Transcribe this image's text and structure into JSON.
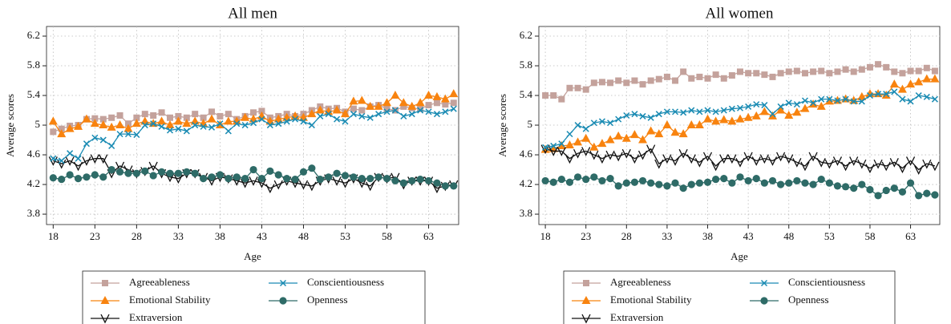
{
  "chart_data": [
    {
      "type": "line",
      "title": "All men",
      "xlabel": "Age",
      "ylabel": "Average scores",
      "grid": true,
      "xlim": [
        17.2,
        66.6
      ],
      "ylim": [
        3.66,
        6.33
      ],
      "xticks": [
        18,
        23,
        28,
        33,
        38,
        43,
        48,
        53,
        58,
        63
      ],
      "yticks": [
        3.8,
        4.2,
        4.6,
        5,
        5.4,
        5.8,
        6.2
      ],
      "x": [
        18,
        19,
        20,
        21,
        22,
        23,
        24,
        25,
        26,
        27,
        28,
        29,
        30,
        31,
        32,
        33,
        34,
        35,
        36,
        37,
        38,
        39,
        40,
        41,
        42,
        43,
        44,
        45,
        46,
        47,
        48,
        49,
        50,
        51,
        52,
        53,
        54,
        55,
        56,
        57,
        58,
        59,
        60,
        61,
        62,
        63,
        64,
        65,
        66
      ],
      "series": [
        {
          "name": "Agreeableness",
          "color": "#c4a29c",
          "marker": "square",
          "values": [
            4.91,
            4.95,
            4.99,
            5.0,
            5.08,
            5.09,
            5.08,
            5.1,
            5.13,
            5.02,
            5.1,
            5.15,
            5.13,
            5.17,
            5.1,
            5.12,
            5.1,
            5.15,
            5.1,
            5.18,
            5.12,
            5.15,
            5.08,
            5.12,
            5.17,
            5.19,
            5.1,
            5.12,
            5.15,
            5.12,
            5.15,
            5.2,
            5.25,
            5.22,
            5.23,
            5.18,
            5.22,
            5.2,
            5.25,
            5.27,
            5.22,
            5.2,
            5.25,
            5.23,
            5.22,
            5.27,
            5.3,
            5.28,
            5.3
          ]
        },
        {
          "name": "Emotional Stability",
          "color": "#f8830f",
          "marker": "triangle",
          "values": [
            5.05,
            4.88,
            4.95,
            4.98,
            5.08,
            5.02,
            5.0,
            4.97,
            5.0,
            4.95,
            5.02,
            5.05,
            5.02,
            5.05,
            5.0,
            5.05,
            5.02,
            5.05,
            5.02,
            5.08,
            5.0,
            5.05,
            5.05,
            5.1,
            5.08,
            5.12,
            5.05,
            5.08,
            5.1,
            5.12,
            5.1,
            5.15,
            5.2,
            5.18,
            5.2,
            5.15,
            5.32,
            5.33,
            5.25,
            5.25,
            5.3,
            5.4,
            5.3,
            5.25,
            5.3,
            5.4,
            5.38,
            5.35,
            5.42
          ]
        },
        {
          "name": "Extraversion",
          "color": "#111111",
          "marker": "vee",
          "values": [
            4.52,
            4.48,
            4.52,
            4.45,
            4.52,
            4.55,
            4.55,
            4.35,
            4.45,
            4.4,
            4.35,
            4.38,
            4.45,
            4.35,
            4.3,
            4.28,
            4.35,
            4.35,
            4.3,
            4.25,
            4.3,
            4.28,
            4.25,
            4.22,
            4.25,
            4.22,
            4.15,
            4.2,
            4.25,
            4.22,
            4.2,
            4.18,
            4.25,
            4.28,
            4.25,
            4.22,
            4.28,
            4.22,
            4.18,
            4.3,
            4.28,
            4.3,
            4.2,
            4.25,
            4.25,
            4.25,
            4.15,
            4.18,
            4.2
          ]
        },
        {
          "name": "Conscientiousness",
          "color": "#1a8bb3",
          "marker": "cross",
          "values": [
            4.55,
            4.52,
            4.62,
            4.55,
            4.75,
            4.83,
            4.8,
            4.72,
            4.88,
            4.88,
            4.87,
            5.0,
            5.02,
            4.98,
            4.93,
            4.95,
            4.92,
            5.0,
            4.98,
            4.97,
            5.02,
            4.92,
            5.02,
            5.0,
            5.03,
            5.08,
            5.0,
            5.02,
            5.05,
            5.08,
            5.05,
            5.0,
            5.12,
            5.15,
            5.08,
            5.05,
            5.15,
            5.12,
            5.1,
            5.15,
            5.18,
            5.2,
            5.12,
            5.15,
            5.2,
            5.18,
            5.15,
            5.18,
            5.22
          ]
        },
        {
          "name": "Openness",
          "color": "#2e6b67",
          "marker": "circle",
          "values": [
            4.29,
            4.27,
            4.33,
            4.28,
            4.3,
            4.33,
            4.3,
            4.4,
            4.37,
            4.35,
            4.35,
            4.38,
            4.32,
            4.37,
            4.35,
            4.35,
            4.37,
            4.35,
            4.28,
            4.3,
            4.33,
            4.28,
            4.3,
            4.28,
            4.4,
            4.28,
            4.38,
            4.33,
            4.28,
            4.27,
            4.37,
            4.42,
            4.27,
            4.3,
            4.35,
            4.32,
            4.3,
            4.28,
            4.28,
            4.3,
            4.28,
            4.25,
            4.22,
            4.25,
            4.27,
            4.25,
            4.22,
            4.18,
            4.18
          ]
        }
      ]
    },
    {
      "type": "line",
      "title": "All women",
      "xlabel": "Age",
      "ylabel": "Average scores",
      "grid": true,
      "xlim": [
        17.2,
        66.6
      ],
      "ylim": [
        3.66,
        6.33
      ],
      "xticks": [
        18,
        23,
        28,
        33,
        38,
        43,
        48,
        53,
        58,
        63
      ],
      "yticks": [
        3.8,
        4.2,
        4.6,
        5,
        5.4,
        5.8,
        6.2
      ],
      "x": [
        18,
        19,
        20,
        21,
        22,
        23,
        24,
        25,
        26,
        27,
        28,
        29,
        30,
        31,
        32,
        33,
        34,
        35,
        36,
        37,
        38,
        39,
        40,
        41,
        42,
        43,
        44,
        45,
        46,
        47,
        48,
        49,
        50,
        51,
        52,
        53,
        54,
        55,
        56,
        57,
        58,
        59,
        60,
        61,
        62,
        63,
        64,
        65,
        66
      ],
      "series": [
        {
          "name": "Agreeableness",
          "color": "#c4a29c",
          "marker": "square",
          "values": [
            5.4,
            5.4,
            5.35,
            5.5,
            5.5,
            5.48,
            5.57,
            5.58,
            5.57,
            5.6,
            5.57,
            5.6,
            5.55,
            5.6,
            5.62,
            5.65,
            5.6,
            5.72,
            5.63,
            5.65,
            5.63,
            5.68,
            5.63,
            5.67,
            5.72,
            5.7,
            5.7,
            5.68,
            5.65,
            5.7,
            5.72,
            5.73,
            5.7,
            5.72,
            5.73,
            5.7,
            5.72,
            5.75,
            5.72,
            5.75,
            5.78,
            5.82,
            5.78,
            5.72,
            5.7,
            5.73,
            5.73,
            5.77,
            5.73
          ]
        },
        {
          "name": "Emotional Stability",
          "color": "#f8830f",
          "marker": "triangle",
          "values": [
            4.67,
            4.68,
            4.72,
            4.73,
            4.77,
            4.82,
            4.7,
            4.75,
            4.8,
            4.85,
            4.82,
            4.87,
            4.8,
            4.92,
            4.88,
            5.0,
            4.9,
            4.88,
            5.0,
            5.0,
            5.08,
            5.05,
            5.07,
            5.05,
            5.08,
            5.1,
            5.12,
            5.18,
            5.12,
            5.2,
            5.13,
            5.17,
            5.22,
            5.28,
            5.25,
            5.32,
            5.33,
            5.35,
            5.33,
            5.38,
            5.42,
            5.42,
            5.4,
            5.55,
            5.48,
            5.55,
            5.58,
            5.62,
            5.62
          ]
        },
        {
          "name": "Extraversion",
          "color": "#111111",
          "marker": "vee",
          "values": [
            4.68,
            4.65,
            4.65,
            4.55,
            4.62,
            4.65,
            4.6,
            4.55,
            4.6,
            4.58,
            4.62,
            4.55,
            4.6,
            4.68,
            4.48,
            4.55,
            4.52,
            4.62,
            4.55,
            4.5,
            4.58,
            4.45,
            4.55,
            4.55,
            4.5,
            4.58,
            4.52,
            4.55,
            4.52,
            4.58,
            4.55,
            4.5,
            4.45,
            4.58,
            4.5,
            4.48,
            4.52,
            4.45,
            4.52,
            4.48,
            4.42,
            4.48,
            4.45,
            4.5,
            4.42,
            4.52,
            4.4,
            4.48,
            4.45
          ]
        },
        {
          "name": "Conscientiousness",
          "color": "#1a8bb3",
          "marker": "cross",
          "values": [
            4.7,
            4.72,
            4.75,
            4.88,
            5.0,
            4.95,
            5.03,
            5.05,
            5.03,
            5.08,
            5.13,
            5.15,
            5.12,
            5.1,
            5.15,
            5.18,
            5.18,
            5.17,
            5.2,
            5.18,
            5.2,
            5.18,
            5.2,
            5.22,
            5.23,
            5.25,
            5.28,
            5.27,
            5.15,
            5.25,
            5.3,
            5.28,
            5.33,
            5.3,
            5.35,
            5.35,
            5.33,
            5.35,
            5.32,
            5.32,
            5.4,
            5.42,
            5.42,
            5.45,
            5.35,
            5.32,
            5.4,
            5.38,
            5.35
          ]
        },
        {
          "name": "Openness",
          "color": "#2e6b67",
          "marker": "circle",
          "values": [
            4.25,
            4.23,
            4.27,
            4.23,
            4.3,
            4.27,
            4.3,
            4.25,
            4.28,
            4.18,
            4.22,
            4.23,
            4.25,
            4.22,
            4.2,
            4.18,
            4.22,
            4.15,
            4.2,
            4.22,
            4.23,
            4.27,
            4.28,
            4.22,
            4.3,
            4.25,
            4.28,
            4.22,
            4.25,
            4.2,
            4.22,
            4.25,
            4.22,
            4.2,
            4.27,
            4.22,
            4.18,
            4.17,
            4.15,
            4.2,
            4.13,
            4.05,
            4.12,
            4.15,
            4.1,
            4.22,
            4.05,
            4.08,
            4.06
          ]
        }
      ]
    }
  ]
}
